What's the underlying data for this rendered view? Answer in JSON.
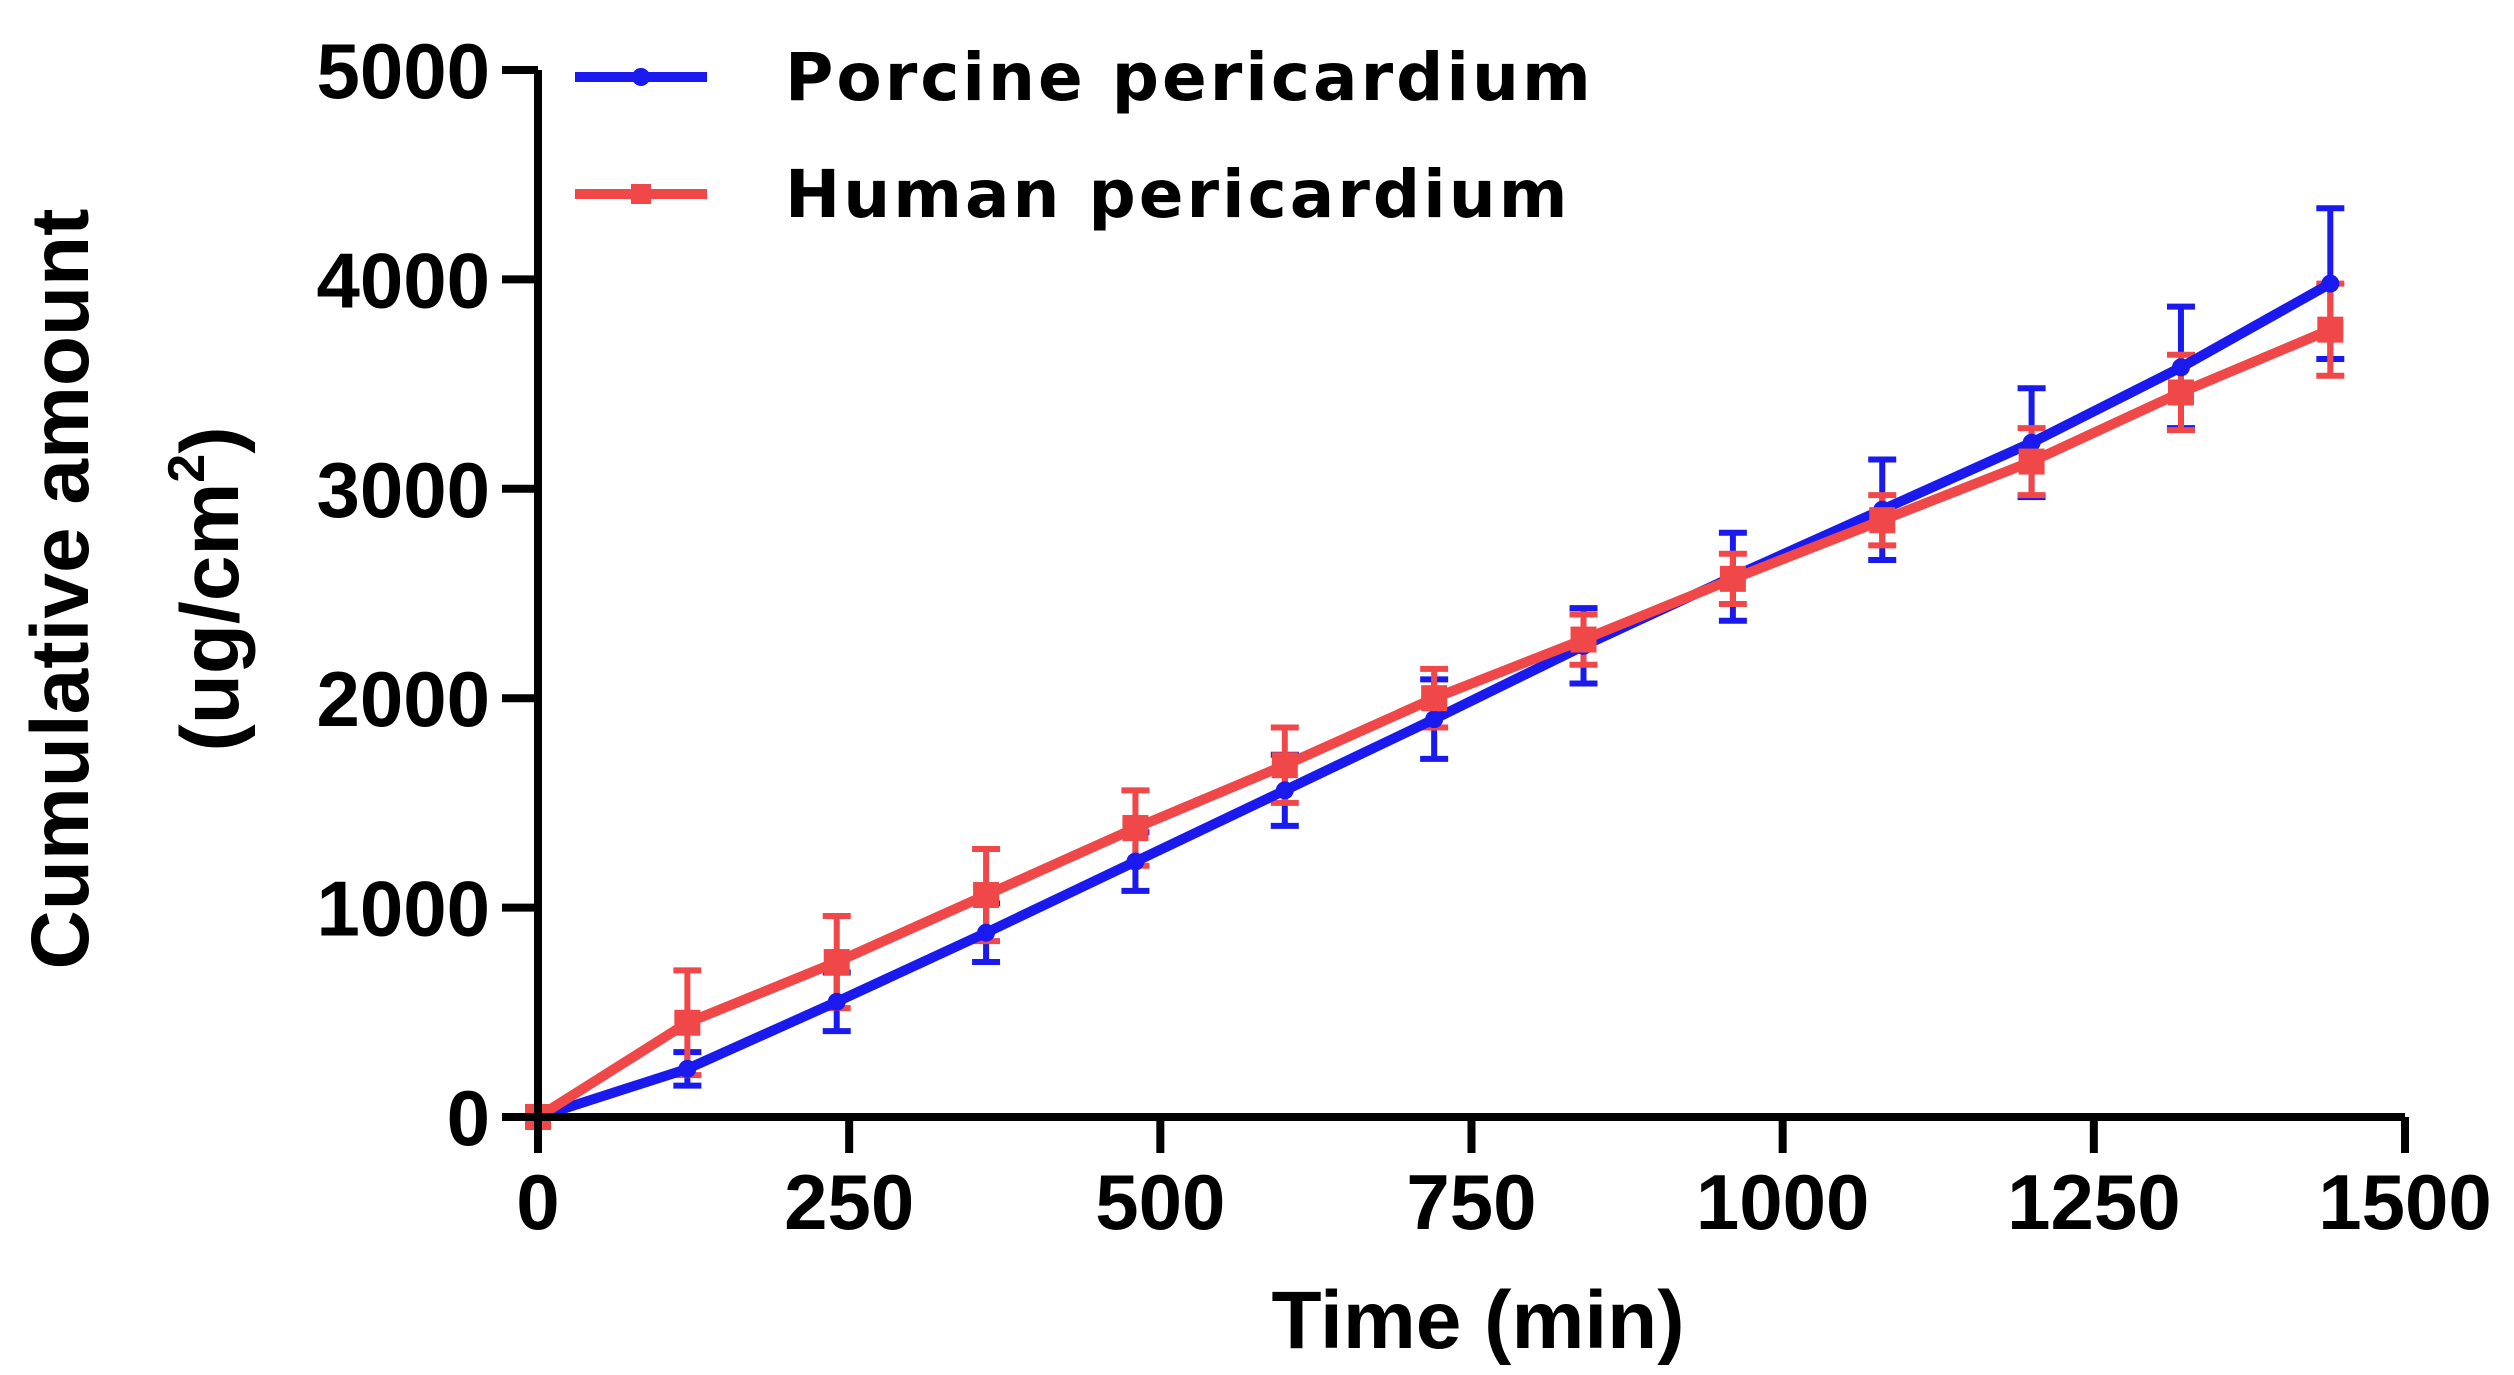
{
  "chart_data": {
    "type": "line",
    "title": "",
    "xlabel": "Time (min)",
    "ylabel_line1": "Cumulative amount",
    "ylabel_line2": "(ug/cm",
    "ylabel_sup": "2",
    "ylabel_close": ")",
    "xlim": [
      0,
      1500
    ],
    "ylim": [
      0,
      5000
    ],
    "x_ticks": [
      0,
      250,
      500,
      750,
      1000,
      1250,
      1500
    ],
    "x_tick_labels": [
      "0",
      "250",
      "500",
      "750",
      "1000",
      "1250",
      "1500"
    ],
    "y_ticks": [
      0,
      1000,
      2000,
      3000,
      4000,
      5000
    ],
    "y_tick_labels": [
      "0",
      "1000",
      "2000",
      "3000",
      "4000",
      "5000"
    ],
    "grid": false,
    "legend_position": "top-left",
    "x": [
      0,
      120,
      240,
      360,
      480,
      600,
      720,
      840,
      960,
      1080,
      1200,
      1320,
      1440
    ],
    "series": [
      {
        "name": "Porcine pericardium",
        "color": "#1a1aee",
        "marker": "circle",
        "values": [
          0,
          230,
          550,
          880,
          1220,
          1560,
          1900,
          2250,
          2580,
          2900,
          3220,
          3580,
          3980
        ],
        "errors": [
          0,
          80,
          140,
          140,
          140,
          170,
          190,
          180,
          210,
          240,
          260,
          290,
          360
        ]
      },
      {
        "name": "Human pericardium",
        "color": "#f04848",
        "marker": "square",
        "values": [
          0,
          450,
          740,
          1060,
          1380,
          1680,
          2000,
          2280,
          2570,
          2850,
          3130,
          3460,
          3760
        ],
        "errors": [
          0,
          250,
          220,
          220,
          180,
          180,
          140,
          120,
          120,
          120,
          160,
          180,
          220
        ]
      }
    ]
  }
}
